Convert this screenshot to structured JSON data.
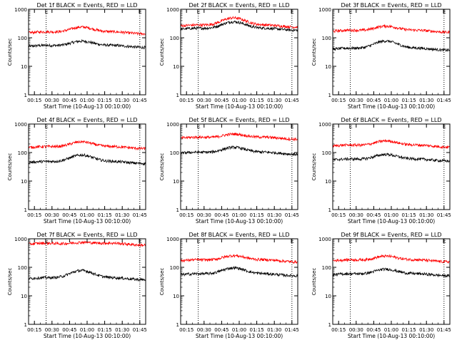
{
  "figure": {
    "xlabel": "Start Time (10-Aug-13 00:10:00)",
    "ylabel": "Counts/sec",
    "xticks": [
      "00:15",
      "00:30",
      "00:45",
      "01:00",
      "01:15",
      "01:30",
      "01:45"
    ],
    "yticks": [
      "1",
      "10",
      "100",
      "1000"
    ],
    "marker_letter": "E",
    "colors": {
      "events": "#000000",
      "lld": "#ff0000",
      "axis": "#000000",
      "marker": "#000000"
    }
  },
  "chart_data": [
    {
      "type": "line",
      "title": "Det 1f BLACK = Events, RED = LLD",
      "yscale": "log",
      "ylim": [
        1,
        1000
      ],
      "x_unit": "minutes since 00:10:00",
      "xlim": [
        0,
        100
      ],
      "markers_x": [
        15,
        95
      ],
      "series": [
        {
          "name": "BLACK = Events",
          "color": "#000000",
          "base": 50,
          "peak": 80
        },
        {
          "name": "RED = LLD",
          "color": "#ff0000",
          "base": 150,
          "peak": 250
        }
      ]
    },
    {
      "type": "line",
      "title": "Det 2f BLACK = Events, RED = LLD",
      "yscale": "log",
      "ylim": [
        1,
        1000
      ],
      "x_unit": "minutes since 00:10:00",
      "xlim": [
        0,
        100
      ],
      "markers_x": [
        15,
        95
      ],
      "series": [
        {
          "name": "BLACK = Events",
          "color": "#000000",
          "base": 200,
          "peak": 380
        },
        {
          "name": "RED = LLD",
          "color": "#ff0000",
          "base": 260,
          "peak": 520
        }
      ]
    },
    {
      "type": "line",
      "title": "Det 3f BLACK = Events, RED = LLD",
      "yscale": "log",
      "ylim": [
        1,
        1000
      ],
      "x_unit": "minutes since 00:10:00",
      "xlim": [
        0,
        100
      ],
      "markers_x": [
        15,
        95
      ],
      "series": [
        {
          "name": "BLACK = Events",
          "color": "#000000",
          "base": 40,
          "peak": 80
        },
        {
          "name": "RED = LLD",
          "color": "#ff0000",
          "base": 170,
          "peak": 270
        }
      ]
    },
    {
      "type": "line",
      "title": "Det 4f BLACK = Events, RED = LLD",
      "yscale": "log",
      "ylim": [
        1,
        1000
      ],
      "x_unit": "minutes since 00:10:00",
      "xlim": [
        0,
        100
      ],
      "markers_x": [
        15,
        95
      ],
      "series": [
        {
          "name": "BLACK = Events",
          "color": "#000000",
          "base": 45,
          "peak": 85
        },
        {
          "name": "RED = LLD",
          "color": "#ff0000",
          "base": 150,
          "peak": 250
        }
      ]
    },
    {
      "type": "line",
      "title": "Det 5f BLACK = Events, RED = LLD",
      "yscale": "log",
      "ylim": [
        1,
        1000
      ],
      "x_unit": "minutes since 00:10:00",
      "xlim": [
        0,
        100
      ],
      "markers_x": [
        15,
        95
      ],
      "series": [
        {
          "name": "BLACK = Events",
          "color": "#000000",
          "base": 95,
          "peak": 160
        },
        {
          "name": "RED = LLD",
          "color": "#ff0000",
          "base": 320,
          "peak": 470
        }
      ]
    },
    {
      "type": "line",
      "title": "Det 6f BLACK = Events, RED = LLD",
      "yscale": "log",
      "ylim": [
        1,
        1000
      ],
      "x_unit": "minutes since 00:10:00",
      "xlim": [
        0,
        100
      ],
      "markers_x": [
        15,
        95
      ],
      "series": [
        {
          "name": "BLACK = Events",
          "color": "#000000",
          "base": 55,
          "peak": 90
        },
        {
          "name": "RED = LLD",
          "color": "#ff0000",
          "base": 170,
          "peak": 270
        }
      ]
    },
    {
      "type": "line",
      "title": "Det 7f BLACK = Events, RED = LLD",
      "yscale": "log",
      "ylim": [
        1,
        1000
      ],
      "x_unit": "minutes since 00:10:00",
      "xlim": [
        0,
        100
      ],
      "markers_x": [
        15,
        95
      ],
      "series": [
        {
          "name": "BLACK = Events",
          "color": "#000000",
          "base": 40,
          "peak": 80
        },
        {
          "name": "RED = LLD",
          "color": "#ff0000",
          "base": 650,
          "peak": 800
        }
      ]
    },
    {
      "type": "line",
      "title": "Det 8f BLACK = Events, RED = LLD",
      "yscale": "log",
      "ylim": [
        1,
        1000
      ],
      "x_unit": "minutes since 00:10:00",
      "xlim": [
        0,
        100
      ],
      "markers_x": [
        15,
        95
      ],
      "series": [
        {
          "name": "BLACK = Events",
          "color": "#000000",
          "base": 55,
          "peak": 100
        },
        {
          "name": "RED = LLD",
          "color": "#ff0000",
          "base": 170,
          "peak": 270
        }
      ]
    },
    {
      "type": "line",
      "title": "Det 9f BLACK = Events, RED = LLD",
      "yscale": "log",
      "ylim": [
        1,
        1000
      ],
      "x_unit": "minutes since 00:10:00",
      "xlim": [
        0,
        100
      ],
      "markers_x": [
        15,
        95
      ],
      "series": [
        {
          "name": "BLACK = Events",
          "color": "#000000",
          "base": 55,
          "peak": 90
        },
        {
          "name": "RED = LLD",
          "color": "#ff0000",
          "base": 170,
          "peak": 260
        }
      ]
    }
  ]
}
